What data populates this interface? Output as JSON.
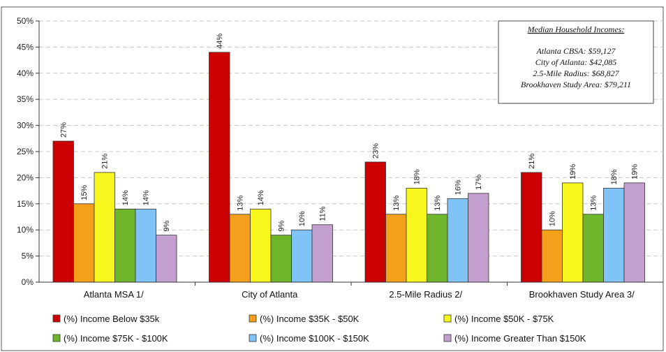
{
  "chart_data": {
    "type": "bar",
    "categories": [
      "Atlanta MSA 1/",
      "City of Atlanta",
      "2.5-Mile Radius 2/",
      "Brookhaven Study Area 3/"
    ],
    "series": [
      {
        "name": "(%) Income Below $35k",
        "color": "#cc0000",
        "values": [
          27,
          44,
          23,
          21
        ],
        "labels": [
          "27%",
          "44%",
          "23%",
          "21%"
        ]
      },
      {
        "name": "(%) Income $35K - $50K",
        "color": "#f5a01a",
        "values": [
          15,
          13,
          13,
          10
        ],
        "labels": [
          "15%",
          "13%",
          "13%",
          "10%"
        ]
      },
      {
        "name": "(%) Income $50K - $75K",
        "color": "#f7f71e",
        "values": [
          21,
          14,
          18,
          19
        ],
        "labels": [
          "21%",
          "14%",
          "18%",
          "19%"
        ]
      },
      {
        "name": "(%) Income $75K - $100K",
        "color": "#6fb52c",
        "values": [
          14,
          9,
          13,
          13
        ],
        "labels": [
          "14%",
          "9%",
          "13%",
          "13%"
        ]
      },
      {
        "name": "(%) Income $100K - $150K",
        "color": "#7fc3f7",
        "values": [
          14,
          10,
          16,
          18
        ],
        "labels": [
          "14%",
          "10%",
          "16%",
          "18%"
        ]
      },
      {
        "name": "(%) Income Greater Than $150K",
        "color": "#c29fcf",
        "values": [
          9,
          11,
          17,
          19
        ],
        "labels": [
          "9%",
          "11%",
          "17%",
          "19%"
        ]
      }
    ],
    "yticks": [
      "0%",
      "5%",
      "10%",
      "15%",
      "20%",
      "25%",
      "30%",
      "35%",
      "40%",
      "45%",
      "50%"
    ],
    "ylim": [
      0,
      50
    ],
    "grid": true,
    "legend": "bottom"
  },
  "info_box": {
    "title": "Median Household Incomes:",
    "lines": [
      "Atlanta CBSA:  $59,127",
      "City of Atlanta:  $42,085",
      "2.5-Mile Radius:  $68,827",
      "Brookhaven Study Area: $79,211"
    ]
  }
}
